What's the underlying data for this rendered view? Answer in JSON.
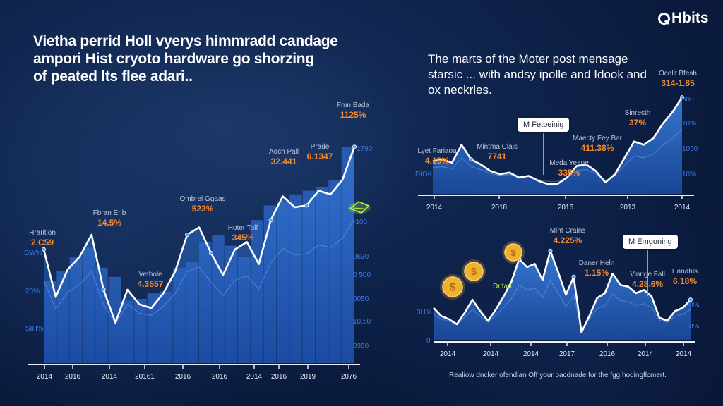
{
  "brand": {
    "name": "Hbits",
    "icon": "search-chart-logo-icon"
  },
  "headline_left": [
    "Vietha perrid Holl vyerys himmradd candage",
    "ampori Hist cryoto hardware go shorzing",
    "of peated lts flee adari.."
  ],
  "headline_right": [
    "The marts of the Moter post mensage",
    "starsic ... with andsy ipolle and Idook and",
    "ox neckrles."
  ],
  "caption": "Realiow dncker ofendian Off your oacdnade for the fgg hodingflcmert.",
  "colors": {
    "accent_orange": "#f08a30",
    "axis_blue": "#3a78e6",
    "line": "#ffffff",
    "area": "#2f6fd0",
    "glow_green": "#b8f03a",
    "coin_gold": "#f0b030"
  },
  "chart_data": [
    {
      "id": "main-chart",
      "type": "area",
      "title": "",
      "x": [
        "2014",
        "2016",
        "2014",
        "20161",
        "2016",
        "2016",
        "2014",
        "2016",
        "2019",
        "2076"
      ],
      "line_values": [
        62,
        36,
        51,
        58,
        70,
        40,
        22,
        40,
        32,
        30,
        38,
        50,
        70,
        74,
        60,
        48,
        62,
        66,
        54,
        78,
        91,
        85,
        86,
        94,
        92,
        100,
        118
      ],
      "bar_values": [
        45,
        50,
        58,
        63,
        52,
        47,
        34,
        35,
        38,
        39,
        52,
        55,
        66,
        70,
        64,
        58,
        78,
        86,
        88,
        92,
        94,
        96,
        100,
        118
      ],
      "y_ticks_left": [
        "DW%",
        "20%",
        "SIH%"
      ],
      "y_ticks_right": [
        "1790",
        "-100",
        "0630",
        "0 500",
        "0050",
        "10.50",
        "0350"
      ],
      "annotations": [
        {
          "label": "Hrarition",
          "value": "2.C59"
        },
        {
          "label": "Fbran Erib",
          "value": "14.5%"
        },
        {
          "label": "Vethole",
          "value": "4.3557"
        },
        {
          "label": "Ombrel Ggaas",
          "value": "523%"
        },
        {
          "label": "Hoter Tolf",
          "value": "345%"
        },
        {
          "label": "Aoch Pall",
          "value": "32.441"
        },
        {
          "label": "Prade",
          "value": "6.1347"
        },
        {
          "label": "Fmn Bada",
          "value": "1125%"
        }
      ]
    },
    {
      "id": "top-right-chart",
      "type": "area",
      "x": [
        "2014",
        "2018",
        "2016",
        "2013",
        "2014"
      ],
      "line_values": [
        40,
        42,
        38,
        60,
        42,
        36,
        28,
        24,
        26,
        20,
        22,
        16,
        12,
        12,
        20,
        34,
        36,
        28,
        14,
        24,
        44,
        64,
        60,
        68,
        86,
        100,
        118
      ],
      "y_ticks_left": [
        "DIOK"
      ],
      "y_ticks_right": [
        "600",
        "10%",
        "1090",
        "10%"
      ],
      "callout": "M Fetbeinig",
      "annotations": [
        {
          "label": "Lyet Fariaoa",
          "value": "4.15%"
        },
        {
          "label": "Mintma Clais",
          "value": "7741"
        },
        {
          "label": "Meda Yeane",
          "value": "335%"
        },
        {
          "label": "Maecty Fey Bar",
          "value": "411.38%"
        },
        {
          "label": "Sinrecth",
          "value": "37%"
        },
        {
          "label": "Ocelit Bfesh",
          "value": "314-1.85"
        }
      ]
    },
    {
      "id": "bottom-right-chart",
      "type": "area",
      "x": [
        "2014",
        "2014",
        "2014",
        "2017",
        "2016",
        "2014",
        "2014"
      ],
      "line_values": [
        40,
        30,
        26,
        20,
        34,
        50,
        36,
        24,
        38,
        54,
        72,
        100,
        90,
        94,
        74,
        110,
        84,
        56,
        78,
        10,
        30,
        52,
        58,
        82,
        68,
        66,
        58,
        62,
        54,
        28,
        24,
        36,
        40,
        50
      ],
      "y_ticks_left": [
        "3H%",
        "0"
      ],
      "y_ticks_right": [
        "0%",
        "0%"
      ],
      "callout": "M Emgoning",
      "coins_label": "Drifao",
      "annotations": [
        {
          "label": "Mint Crains",
          "value": "4.225%"
        },
        {
          "label": "Daner Heln",
          "value": "1.15%"
        },
        {
          "label": "Vinrige Fall",
          "value": "4.28.6%"
        },
        {
          "label": "Eanahls",
          "value": "6.18%"
        }
      ]
    }
  ]
}
